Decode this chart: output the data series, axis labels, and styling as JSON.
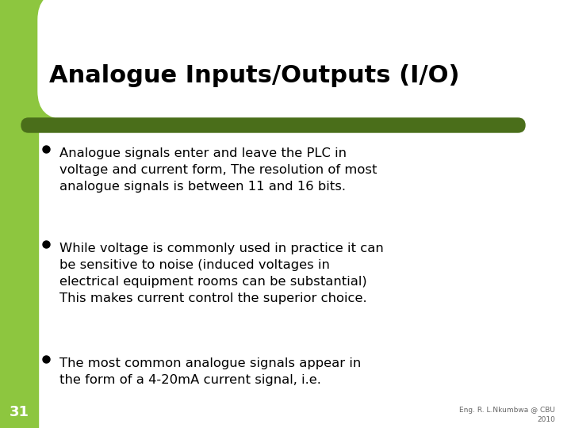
{
  "title": "Analogue Inputs/Outputs (I/O)",
  "background_color": "#ffffff",
  "left_bar_color": "#8dc63f",
  "top_rect_color": "#8dc63f",
  "divider_color": "#4a6e1a",
  "bullet_color": "#000000",
  "title_color": "#000000",
  "text_color": "#000000",
  "footer_color": "#666666",
  "slide_number": "31",
  "footer_line1": "Eng. R. L.Nkumbwa @ CBU",
  "footer_line2": "2010",
  "bullet_points": [
    "Analogue signals enter and leave the PLC in\nvoltage and current form, The resolution of most\nanalogue signals is between 11 and 16 bits.",
    "While voltage is commonly used in practice it can\nbe sensitive to noise (induced voltages in\nelectrical equipment rooms can be substantial)\nThis makes current control the superior choice.",
    "The most common analogue signals appear in\nthe form of a 4-20mA current signal, i.e."
  ]
}
